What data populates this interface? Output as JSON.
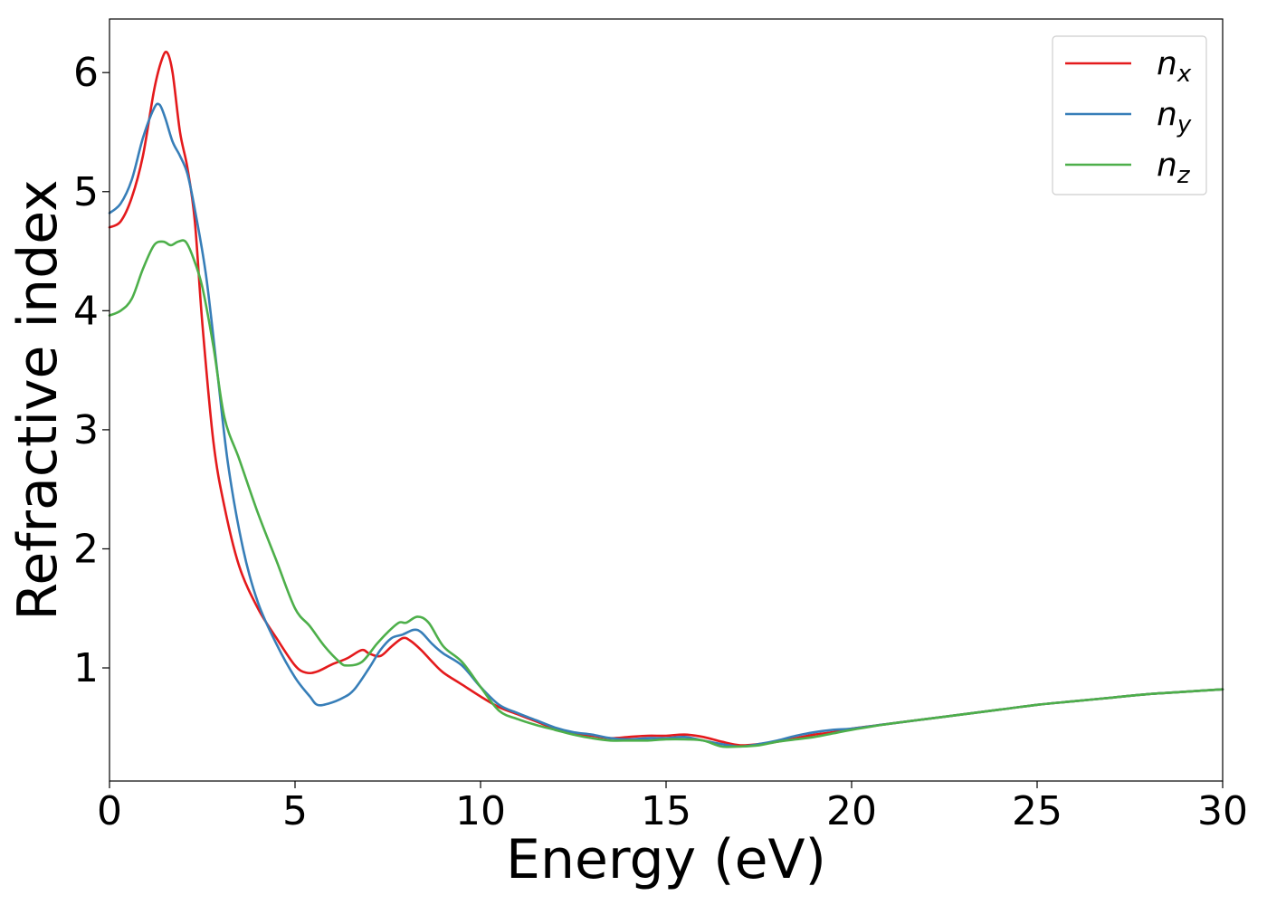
{
  "chart_data": {
    "type": "line",
    "title": "",
    "xlabel": "Energy (eV)",
    "ylabel": "Refractive index",
    "xlim": [
      0,
      30
    ],
    "ylim": [
      0.05,
      6.45
    ],
    "xticks": [
      0,
      5,
      10,
      15,
      20,
      25,
      30
    ],
    "yticks": [
      1,
      2,
      3,
      4,
      5,
      6
    ],
    "grid": false,
    "legend_position": "top-right",
    "series": [
      {
        "name": "n",
        "subscript": "x",
        "color": "#e41a1c",
        "x": [
          0,
          0.3,
          0.6,
          0.9,
          1.2,
          1.4,
          1.55,
          1.7,
          1.9,
          2.1,
          2.3,
          2.5,
          2.8,
          3.1,
          3.5,
          4.0,
          4.5,
          5.0,
          5.3,
          5.6,
          6.0,
          6.4,
          6.8,
          7.0,
          7.3,
          7.6,
          7.9,
          8.1,
          8.4,
          8.7,
          9.0,
          9.5,
          10.0,
          10.5,
          11.0,
          11.5,
          12.0,
          12.5,
          13.0,
          13.5,
          14.0,
          14.5,
          15.0,
          15.5,
          16.0,
          16.5,
          17.0,
          17.5,
          18.0,
          18.5,
          19.0,
          19.5,
          20.0,
          21,
          22,
          23,
          24,
          25,
          26,
          27,
          28,
          29,
          30
        ],
        "y": [
          4.7,
          4.75,
          4.95,
          5.3,
          5.85,
          6.1,
          6.17,
          6.0,
          5.5,
          5.2,
          4.75,
          3.9,
          2.9,
          2.35,
          1.85,
          1.5,
          1.25,
          1.02,
          0.96,
          0.97,
          1.03,
          1.08,
          1.15,
          1.12,
          1.1,
          1.18,
          1.25,
          1.23,
          1.15,
          1.05,
          0.96,
          0.86,
          0.76,
          0.67,
          0.61,
          0.55,
          0.49,
          0.45,
          0.43,
          0.41,
          0.42,
          0.43,
          0.43,
          0.44,
          0.42,
          0.38,
          0.35,
          0.36,
          0.38,
          0.41,
          0.44,
          0.46,
          0.49,
          0.53,
          0.57,
          0.61,
          0.65,
          0.69,
          0.72,
          0.75,
          0.78,
          0.8,
          0.82
        ]
      },
      {
        "name": "n",
        "subscript": "y",
        "color": "#377eb8",
        "x": [
          0,
          0.3,
          0.6,
          0.9,
          1.2,
          1.35,
          1.5,
          1.7,
          1.9,
          2.1,
          2.3,
          2.6,
          2.9,
          3.2,
          3.6,
          4.0,
          4.5,
          5.0,
          5.4,
          5.6,
          5.9,
          6.3,
          6.6,
          7.0,
          7.3,
          7.6,
          7.9,
          8.2,
          8.4,
          8.7,
          9.0,
          9.5,
          10.0,
          10.5,
          11.0,
          11.5,
          12.0,
          12.5,
          13.0,
          13.5,
          14.0,
          14.5,
          15.0,
          15.5,
          16.0,
          16.5,
          17.0,
          17.5,
          18.0,
          18.5,
          19.0,
          19.5,
          20.0,
          21,
          22,
          23,
          24,
          25,
          26,
          27,
          28,
          29,
          30
        ],
        "y": [
          4.82,
          4.9,
          5.1,
          5.45,
          5.7,
          5.73,
          5.62,
          5.42,
          5.3,
          5.15,
          4.85,
          4.3,
          3.5,
          2.7,
          2.0,
          1.55,
          1.2,
          0.92,
          0.76,
          0.69,
          0.7,
          0.75,
          0.82,
          1.0,
          1.15,
          1.25,
          1.28,
          1.32,
          1.3,
          1.2,
          1.12,
          1.02,
          0.84,
          0.69,
          0.62,
          0.56,
          0.5,
          0.46,
          0.44,
          0.41,
          0.4,
          0.41,
          0.41,
          0.42,
          0.39,
          0.36,
          0.34,
          0.36,
          0.39,
          0.43,
          0.46,
          0.48,
          0.49,
          0.53,
          0.57,
          0.61,
          0.65,
          0.69,
          0.72,
          0.75,
          0.78,
          0.8,
          0.82
        ]
      },
      {
        "name": "n",
        "subscript": "z",
        "color": "#4daf4a",
        "x": [
          0,
          0.3,
          0.6,
          0.9,
          1.2,
          1.45,
          1.65,
          1.85,
          2.05,
          2.25,
          2.5,
          2.8,
          3.1,
          3.5,
          4.0,
          4.5,
          5.0,
          5.4,
          5.8,
          6.2,
          6.4,
          6.8,
          7.2,
          7.5,
          7.8,
          8.0,
          8.3,
          8.6,
          9.0,
          9.5,
          10.0,
          10.5,
          11.0,
          11.5,
          12.0,
          12.5,
          13.0,
          13.5,
          14.0,
          14.5,
          15.0,
          15.5,
          16.0,
          16.5,
          17.0,
          17.5,
          18.0,
          18.5,
          19.0,
          19.5,
          20.0,
          21,
          22,
          23,
          24,
          25,
          26,
          27,
          28,
          29,
          30
        ],
        "y": [
          3.96,
          4.0,
          4.1,
          4.35,
          4.55,
          4.58,
          4.55,
          4.58,
          4.58,
          4.45,
          4.2,
          3.7,
          3.1,
          2.75,
          2.3,
          1.9,
          1.5,
          1.35,
          1.18,
          1.05,
          1.02,
          1.05,
          1.2,
          1.3,
          1.38,
          1.38,
          1.43,
          1.38,
          1.18,
          1.05,
          0.84,
          0.64,
          0.57,
          0.52,
          0.48,
          0.44,
          0.41,
          0.39,
          0.39,
          0.39,
          0.4,
          0.4,
          0.39,
          0.34,
          0.34,
          0.35,
          0.38,
          0.4,
          0.42,
          0.45,
          0.48,
          0.53,
          0.57,
          0.61,
          0.65,
          0.69,
          0.72,
          0.75,
          0.78,
          0.8,
          0.82
        ]
      }
    ]
  }
}
